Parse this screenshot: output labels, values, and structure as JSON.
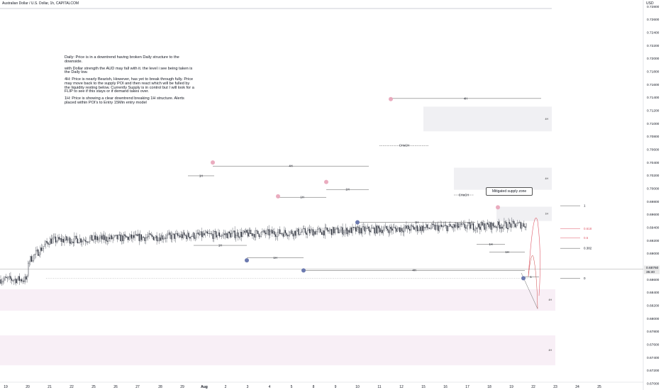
{
  "header": {
    "symbol_title": "Australian Dollar / U.S. Dollar, 1h, CAPITALCOM",
    "currency": "USD"
  },
  "notes": [
    "Daily: Price is in a downtrend having broken Daily structure to the downside.",
    "with Dollar strength  the AUD may fall with it. the level i see being taken is the Daily low.",
    "4H: Price is nearly Bearish, However, has yet to break through fully. Price may move back to the supply POI and then react which will be fulled by the liquidity resting below. Currently Supply is in control but I will look for a FLIP to see if this stays or if demand takes over.",
    "1H: Price is showing a clear downtrend breaking 1H structure. Alerts placed within POI's to Entry 15Min entry model"
  ],
  "callout": "Mitigated supply zone",
  "price_badges": {
    "last": "0.68760",
    "countdown": "35:40"
  },
  "colors": {
    "candle": "#2a2e39",
    "swing_high": "#e8a3b8",
    "swing_low": "#6c7ab0",
    "zone_grey": "#f0f0f3",
    "zone_pink": "#f8eff6",
    "fib_red": "#e05a6a",
    "projection": "#e05a6a"
  },
  "chart_data": {
    "type": "candlestick",
    "title": "Australian Dollar / U.S. Dollar, 1h, CAPITALCOM",
    "y_axis": {
      "unit": "USD",
      "range": [
        0.6702,
        0.729
      ],
      "ticks": [
        "0.72800",
        "0.72600",
        "0.72400",
        "0.72200",
        "0.72000",
        "0.71800",
        "0.71600",
        "0.71400",
        "0.71200",
        "0.71000",
        "0.70800",
        "0.70600",
        "0.70400",
        "0.70200",
        "0.70000",
        "0.69800",
        "0.69600",
        "0.69400",
        "0.69200",
        "0.69000",
        "0.68800",
        "0.68600",
        "0.68400",
        "0.68200",
        "0.68000",
        "0.67800",
        "0.67600",
        "0.67400",
        "0.67200",
        "0.67000"
      ]
    },
    "x_axis": {
      "ticks": [
        "19",
        "20",
        "21",
        "22",
        "25",
        "26",
        "27",
        "28",
        "29",
        "Aug",
        "2",
        "3",
        "4",
        "5",
        "8",
        "9",
        "10",
        "11",
        "12",
        "15",
        "16",
        "17",
        "18",
        "19",
        "22",
        "23",
        "24",
        "25"
      ]
    },
    "price_path": [
      [
        "19",
        0.6822
      ],
      [
        "20",
        0.6887
      ],
      [
        "21",
        0.692
      ],
      [
        "22",
        0.6945
      ],
      [
        "25",
        0.695
      ],
      [
        "26",
        0.698
      ],
      [
        "27",
        0.699
      ],
      [
        "28",
        0.6995
      ],
      [
        "29",
        0.7035
      ],
      [
        "Aug",
        0.699
      ],
      [
        "2",
        0.6955
      ],
      [
        "3",
        0.692
      ],
      [
        "4",
        0.6965
      ],
      [
        "5",
        0.6925
      ],
      [
        "8",
        0.699
      ],
      [
        "9",
        0.6972
      ],
      [
        "10",
        0.6965
      ],
      [
        "11",
        0.712
      ],
      [
        "12",
        0.7105
      ],
      [
        "15",
        0.7075
      ],
      [
        "16",
        0.7005
      ],
      [
        "17",
        0.699
      ],
      [
        "18",
        0.6928
      ],
      [
        "19",
        0.6945
      ],
      [
        "22",
        0.686
      ]
    ],
    "structure_levels": [
      {
        "label": "1H",
        "price": 0.70195
      },
      {
        "label": "4H",
        "price": 0.70345
      },
      {
        "label": "1H",
        "price": 0.69865
      },
      {
        "label": "1H",
        "price": 0.69985
      },
      {
        "label": "1H",
        "price": 0.69125
      },
      {
        "label": "1H",
        "price": 0.68935
      },
      {
        "label": "4H",
        "price": 0.71385
      },
      {
        "label": "CHoCH",
        "price": 0.7066
      },
      {
        "label": "1H",
        "price": 0.6948
      },
      {
        "label": "4H",
        "price": 0.6874
      },
      {
        "label": "1H",
        "price": 0.6914
      },
      {
        "label": "1H",
        "price": 0.6902
      },
      {
        "label": "1",
        "price": 0.6864
      },
      {
        "label": "CHoCH",
        "price": 0.699
      }
    ],
    "zones": [
      {
        "label": "4H",
        "type": "supply",
        "top": 0.7126,
        "bottom": 0.7088
      },
      {
        "label": "4H",
        "type": "supply",
        "top": 0.7032,
        "bottom": 0.6998
      },
      {
        "label": "1H",
        "type": "supply",
        "top": 0.6972,
        "bottom": 0.695
      },
      {
        "label": "4H",
        "type": "demand",
        "top": 0.6845,
        "bottom": 0.6812
      },
      {
        "label": "4H",
        "type": "demand",
        "top": 0.6774,
        "bottom": 0.6728
      }
    ],
    "fibonacci": [
      {
        "label": "1",
        "price": 0.69735
      },
      {
        "label": "0.618",
        "price": 0.6938
      },
      {
        "label": "0.5",
        "price": 0.6924
      },
      {
        "label": "0.382",
        "price": 0.6908
      },
      {
        "label": "0",
        "price": 0.6862
      }
    ],
    "swing_highs": [
      0.704,
      0.6988,
      0.701,
      0.71375,
      0.6971
    ],
    "swing_lows": [
      0.68895,
      0.6874,
      0.6948,
      0.6862
    ],
    "last_price": 0.6876
  }
}
